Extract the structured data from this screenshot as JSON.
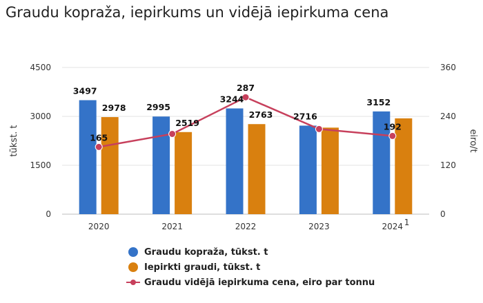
{
  "chart_data": {
    "type": "bar",
    "title": "Graudu kopraža, iepirkums un vidējā iepirkuma cena",
    "categories": [
      "2020",
      "2021",
      "2022",
      "2023",
      "2024"
    ],
    "category_footnote": {
      "index": 4,
      "mark": "1"
    },
    "y_left": {
      "label": "tūkst. t",
      "ylim": [
        0,
        4500
      ],
      "ticks": [
        "0",
        "1500",
        "3000",
        "4500"
      ]
    },
    "y_right": {
      "label": "eiro/t",
      "ylim": [
        0,
        360
      ],
      "ticks": [
        "0",
        "120",
        "240",
        "360"
      ]
    },
    "grid": true,
    "legend_position": "bottom",
    "series": [
      {
        "name": "Graudu kopraža, tūkst. t",
        "type": "bar",
        "axis": "left",
        "color": "#3473c8",
        "values": [
          3497,
          2995,
          3244,
          2716,
          3152
        ],
        "labels": [
          "3497",
          "2995",
          "3244",
          "2716",
          "3152"
        ],
        "label_visible": [
          true,
          true,
          true,
          true,
          true
        ]
      },
      {
        "name": "Iepirkti graudi, tūkst. t",
        "type": "bar",
        "axis": "left",
        "color": "#d9800f",
        "values": [
          2978,
          2519,
          2763,
          2655,
          2940
        ],
        "labels": [
          "2978",
          "2519",
          "2763",
          "",
          ""
        ],
        "label_visible": [
          true,
          true,
          true,
          false,
          false
        ]
      },
      {
        "name": "Graudu vidējā iepirkuma cena, eiro par tonnu",
        "type": "line",
        "axis": "right",
        "color": "#c7405c",
        "values": [
          165,
          197,
          287,
          209,
          192
        ],
        "labels": [
          "165",
          "",
          "287",
          "",
          "192"
        ],
        "label_visible": [
          true,
          false,
          true,
          false,
          true
        ]
      }
    ]
  }
}
